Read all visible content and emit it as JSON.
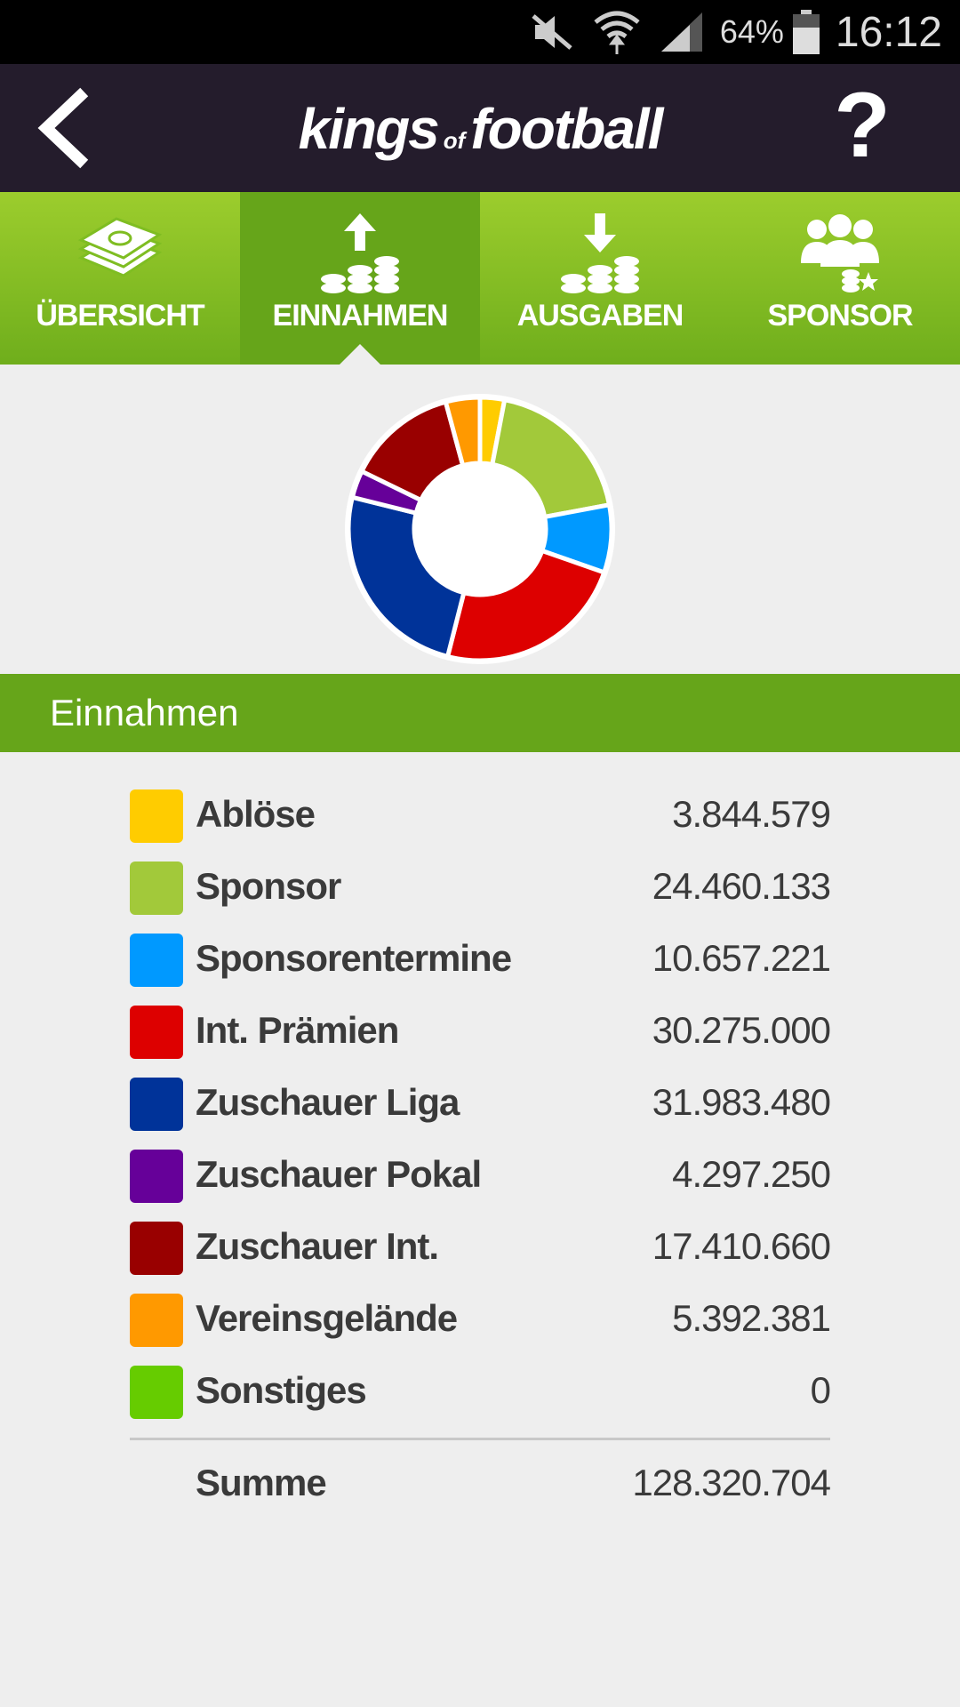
{
  "status_bar": {
    "battery": "64%",
    "time": "16:12",
    "icons": [
      "mute-icon",
      "wifi-icon",
      "signal-icon",
      "battery-icon"
    ]
  },
  "header": {
    "logo_left": "kings",
    "logo_mid": "of",
    "logo_right": "football",
    "help": "?"
  },
  "tabs": [
    {
      "label": "ÜBERSICHT",
      "icon": "money-stack-icon",
      "active": false
    },
    {
      "label": "EINNAHMEN",
      "icon": "coins-up-icon",
      "active": true
    },
    {
      "label": "AUSGABEN",
      "icon": "coins-down-icon",
      "active": false
    },
    {
      "label": "SPONSOR",
      "icon": "sponsor-people-icon",
      "active": false
    }
  ],
  "section_title": "Einnahmen",
  "chart_data": {
    "type": "pie",
    "style": "donut",
    "categories": [
      "Ablöse",
      "Sponsor",
      "Sponsorentermine",
      "Int. Prämien",
      "Zuschauer Liga",
      "Zuschauer Pokal",
      "Zuschauer Int.",
      "Vereinsgelände",
      "Sonstiges"
    ],
    "values": [
      3844579,
      24460133,
      10657221,
      30275000,
      31983480,
      4297250,
      17410660,
      5392381,
      0
    ],
    "colors": [
      "#ffcc00",
      "#a2c93a",
      "#0099ff",
      "#dd0000",
      "#003399",
      "#660099",
      "#990000",
      "#ff9900",
      "#66cc00"
    ]
  },
  "items": [
    {
      "label": "Ablöse",
      "value": "3.844.579"
    },
    {
      "label": "Sponsor",
      "value": "24.460.133"
    },
    {
      "label": "Sponsorentermine",
      "value": "10.657.221"
    },
    {
      "label": "Int. Prämien",
      "value": "30.275.000"
    },
    {
      "label": "Zuschauer Liga",
      "value": "31.983.480"
    },
    {
      "label": "Zuschauer Pokal",
      "value": "4.297.250"
    },
    {
      "label": "Zuschauer Int.",
      "value": "17.410.660"
    },
    {
      "label": "Vereinsgelände",
      "value": "5.392.381"
    },
    {
      "label": "Sonstiges",
      "value": "0"
    }
  ],
  "total": {
    "label": "Summe",
    "value": "128.320.704"
  }
}
